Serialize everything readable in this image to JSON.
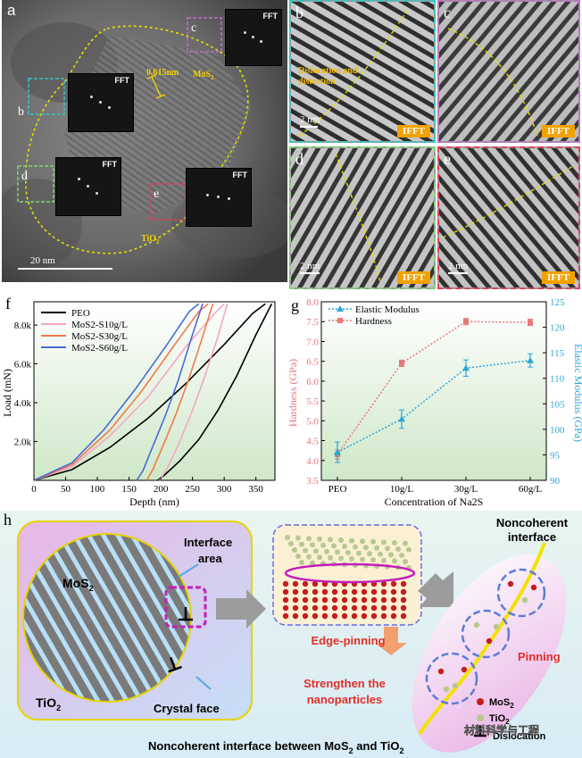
{
  "figure": {
    "panel_a": {
      "letter": "a",
      "fft_label": "FFT",
      "d_spacing": "0.615nm",
      "mos2_label": "MoS",
      "mos2_sub": "2",
      "tio2_label": "TiO",
      "tio2_sub": "2",
      "scale": "20 nm",
      "region_letters": [
        "b",
        "c",
        "d",
        "e"
      ]
    },
    "ifft_panels": [
      {
        "letter": "b",
        "badge": "IFFT",
        "scale": "2 nm",
        "note": "Dislocation and distortion",
        "border_color": "#36c6c6"
      },
      {
        "letter": "c",
        "badge": "IFFT",
        "scale": "",
        "note": "",
        "border_color": "#c070c8"
      },
      {
        "letter": "d",
        "badge": "IFFT",
        "scale": "2 nm",
        "note": "",
        "border_color": "#86d27a"
      },
      {
        "letter": "e",
        "badge": "IFFT",
        "scale": "2 nm",
        "note": "",
        "border_color": "#e0405a"
      }
    ],
    "panel_f": {
      "letter": "f",
      "xlabel": "Depth (nm)",
      "ylabel": "Load (mN)",
      "legend": [
        "PEO",
        "MoS2-S10g/L",
        "MoS2-S30g/L",
        "MoS2-S60g/L"
      ]
    },
    "panel_g": {
      "letter": "g",
      "xlabel": "Concentration of Na2S",
      "ylabel_left": "Hardness (GPa)",
      "ylabel_right": "Elastic Modulus (GPa)",
      "legend": [
        "Elastic Modulus",
        "Hardness"
      ]
    },
    "panel_h": {
      "letter": "h",
      "mos2": "MoS",
      "tio2": "TiO",
      "sub2": "2",
      "interface_area_1": "Interface",
      "interface_area_2": "area",
      "crystal_face": "Crystal face",
      "edge_pinning": "Edge-pinning",
      "strengthen_1": "Strengthen the",
      "strengthen_2": "nanoparticles",
      "noncoherent_1": "Noncoherent",
      "noncoherent_2": "interface",
      "pinning": "Pinning",
      "legend_mos2": "MoS",
      "legend_tio2": "TiO",
      "legend_dislocation": "Dislocation",
      "caption": "Noncoherent interface between MoS",
      "caption_and": " and TiO",
      "watermark": "材料科学与工程"
    },
    "colors": {
      "peo": "#000000",
      "s10": "#f4a6c4",
      "s30": "#f07a4a",
      "s60": "#4a6ad8",
      "hardness": "#e8787a",
      "modulus": "#2aa6d6",
      "accent_red": "#e0302a",
      "accent_orange": "#f2a100"
    }
  },
  "chart_data": [
    {
      "type": "line",
      "title": "",
      "xlabel": "Depth (nm)",
      "ylabel": "Load (mN)",
      "xlim": [
        0,
        380
      ],
      "ylim": [
        0,
        9.2
      ],
      "xticks": [
        0,
        50,
        100,
        150,
        200,
        250,
        300,
        350
      ],
      "yticks": [
        2.0,
        4.0,
        6.0,
        8.0
      ],
      "ytick_labels": [
        "2.0k",
        "4.0k",
        "6.0k",
        "8.0k"
      ],
      "series": [
        {
          "name": "PEO",
          "loading": {
            "x": [
              0,
              60,
              120,
              180,
              240,
              300,
              345,
              365
            ],
            "y": [
              0,
              0.55,
              1.7,
              3.2,
              5.0,
              7.0,
              8.6,
              9.1
            ]
          },
          "unloading": {
            "x": [
              375,
              350,
              320,
              290,
              260,
              230,
              205,
              195
            ],
            "y": [
              9.1,
              7.5,
              5.4,
              3.6,
              2.1,
              1.0,
              0.25,
              0
            ]
          }
        },
        {
          "name": "MoS2-S10g/L",
          "loading": {
            "x": [
              0,
              60,
              120,
              180,
              240,
              285,
              300
            ],
            "y": [
              0,
              0.7,
              2.3,
              4.3,
              6.9,
              8.6,
              9.1
            ]
          },
          "unloading": {
            "x": [
              305,
              290,
              270,
              250,
              230,
              210,
              198
            ],
            "y": [
              9.1,
              7.4,
              5.4,
              3.6,
              2.0,
              0.6,
              0
            ]
          }
        },
        {
          "name": "MoS2-S30g/L",
          "loading": {
            "x": [
              0,
              60,
              120,
              170,
              220,
              260,
              275
            ],
            "y": [
              0,
              0.8,
              2.6,
              4.6,
              6.9,
              8.7,
              9.1
            ]
          },
          "unloading": {
            "x": [
              282,
              265,
              245,
              225,
              205,
              188,
              178
            ],
            "y": [
              9.1,
              7.3,
              5.3,
              3.5,
              1.9,
              0.6,
              0
            ]
          }
        },
        {
          "name": "MoS2-S60g/L",
          "loading": {
            "x": [
              0,
              60,
              110,
              160,
              210,
              245,
              260
            ],
            "y": [
              0,
              0.9,
              2.6,
              4.7,
              7.0,
              8.7,
              9.1
            ]
          },
          "unloading": {
            "x": [
              266,
              248,
              228,
              208,
              188,
              172,
              162
            ],
            "y": [
              9.1,
              7.3,
              5.2,
              3.4,
              1.8,
              0.5,
              0
            ]
          }
        }
      ],
      "legend": [
        "PEO",
        "MoS2-S10g/L",
        "MoS2-S30g/L",
        "MoS2-S60g/L"
      ]
    },
    {
      "type": "line",
      "title": "",
      "xlabel": "Concentration of Na2S",
      "categories": [
        "PEO",
        "10g/L",
        "30g/L",
        "60g/L"
      ],
      "ylabel_left": "Hardness (GPa)",
      "ylim_left": [
        3.5,
        8.0
      ],
      "yticks_left": [
        3.5,
        4.0,
        4.5,
        5.0,
        5.5,
        6.0,
        6.5,
        7.0,
        7.5,
        8.0
      ],
      "ylabel_right": "Elastic Modulus (GPa)",
      "ylim_right": [
        90,
        125
      ],
      "yticks_right": [
        90,
        95,
        100,
        105,
        110,
        115,
        120,
        125
      ],
      "series": [
        {
          "name": "Hardness",
          "axis": "left",
          "values": [
            4.15,
            6.45,
            7.5,
            7.48
          ],
          "errors": [
            0.12,
            0.08,
            0.08,
            0.08
          ]
        },
        {
          "name": "Elastic Modulus",
          "axis": "right",
          "values": [
            95.5,
            102,
            112,
            113.5
          ],
          "errors": [
            2.0,
            1.8,
            1.6,
            1.3
          ]
        }
      ],
      "legend": [
        "Elastic Modulus",
        "Hardness"
      ]
    }
  ]
}
